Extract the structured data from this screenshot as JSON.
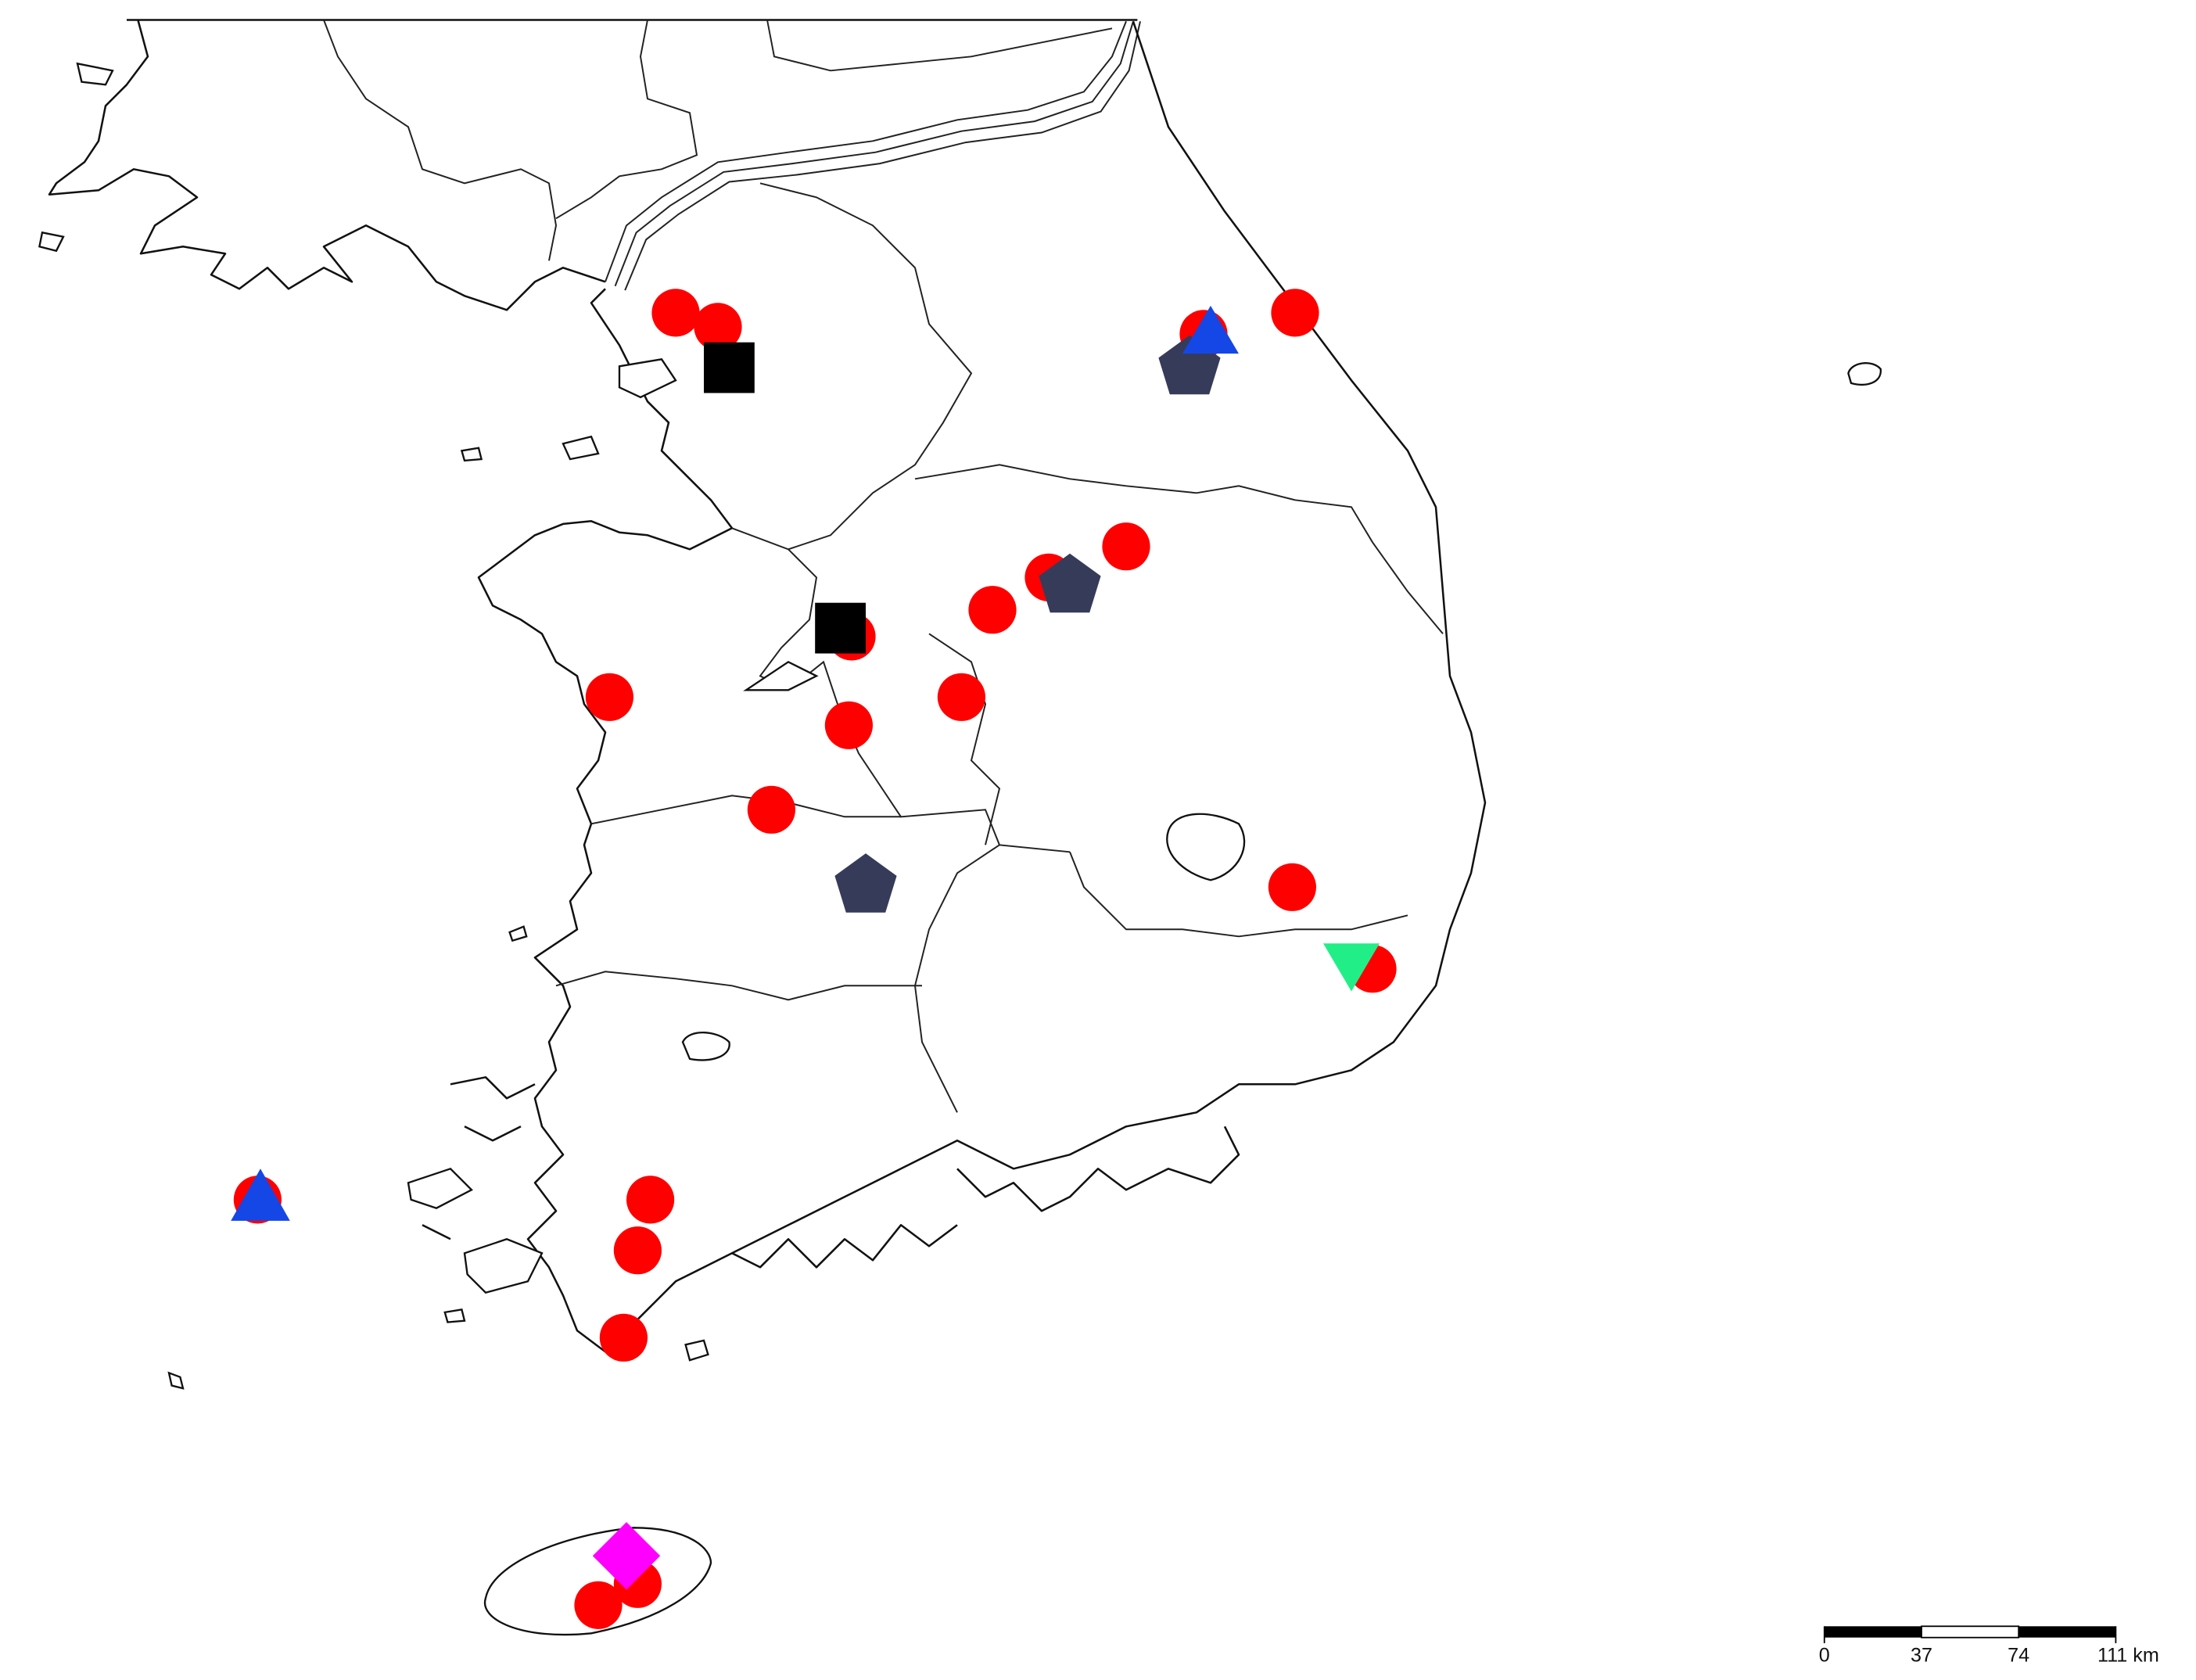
{
  "scale_bar": {
    "labels": [
      "0",
      "37",
      "74",
      "111 km"
    ]
  }
}
